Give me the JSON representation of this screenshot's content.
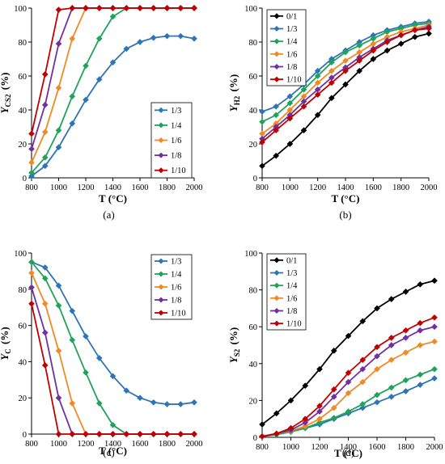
{
  "chart_data": [
    {
      "type": "line",
      "panel": "a",
      "caption": "(a)",
      "xlabel": "T (°C)",
      "ylabel": "Y",
      "ylabel_sub": "CS2",
      "ylabel_unit": "(%)",
      "xlim": [
        800,
        2000
      ],
      "ylim": [
        0,
        100
      ],
      "xticks": [
        800,
        1000,
        1200,
        1400,
        1600,
        1800,
        2000
      ],
      "yticks": [
        0,
        20,
        40,
        60,
        80,
        100
      ],
      "grid": false,
      "legend": "bottom-right",
      "x": [
        800,
        900,
        1000,
        1100,
        1200,
        1300,
        1400,
        1500,
        1600,
        1700,
        1800,
        1900,
        2000
      ],
      "series": [
        {
          "name": "1/3",
          "color": "#2e75b6",
          "values": [
            1,
            7,
            18,
            32,
            46,
            58,
            68,
            76,
            80,
            82.5,
            83.5,
            83.5,
            82
          ]
        },
        {
          "name": "1/4",
          "color": "#1fa35a",
          "values": [
            3,
            12,
            28,
            48,
            66,
            82,
            95,
            100,
            100,
            100,
            100,
            100,
            100
          ]
        },
        {
          "name": "1/6",
          "color": "#f08a24",
          "values": [
            9,
            27,
            53,
            82,
            100,
            100,
            100,
            100,
            100,
            100,
            100,
            100,
            100
          ]
        },
        {
          "name": "1/8",
          "color": "#7030a0",
          "values": [
            17,
            43,
            79,
            100,
            100,
            100,
            100,
            100,
            100,
            100,
            100,
            100,
            100
          ]
        },
        {
          "name": "1/10",
          "color": "#c00000",
          "values": [
            26,
            61,
            99,
            100,
            100,
            100,
            100,
            100,
            100,
            100,
            100,
            100,
            100
          ]
        }
      ]
    },
    {
      "type": "line",
      "panel": "b",
      "caption": "(b)",
      "xlabel": "T (°C)",
      "ylabel": "Y",
      "ylabel_sub": "H2",
      "ylabel_unit": "(%)",
      "xlim": [
        800,
        2000
      ],
      "ylim": [
        0,
        100
      ],
      "xticks": [
        800,
        1000,
        1200,
        1400,
        1600,
        1800,
        2000
      ],
      "yticks": [
        0,
        20,
        40,
        60,
        80,
        100
      ],
      "grid": false,
      "legend": "top-left",
      "x": [
        800,
        900,
        1000,
        1100,
        1200,
        1300,
        1400,
        1500,
        1600,
        1700,
        1800,
        1900,
        2000
      ],
      "series": [
        {
          "name": "0/1",
          "color": "#000000",
          "values": [
            7,
            13,
            20,
            28,
            37,
            47,
            55,
            63,
            70,
            75,
            79,
            83,
            85
          ]
        },
        {
          "name": "1/3",
          "color": "#2e75b6",
          "values": [
            39,
            42,
            48,
            55,
            63,
            70,
            75,
            80,
            84,
            87,
            89,
            91,
            92
          ]
        },
        {
          "name": "1/4",
          "color": "#1fa35a",
          "values": [
            33,
            37,
            44,
            52,
            60,
            68,
            74,
            78,
            82,
            86,
            88,
            90,
            91
          ]
        },
        {
          "name": "1/6",
          "color": "#f08a24",
          "values": [
            26,
            32,
            40,
            48,
            56,
            63,
            69,
            74,
            79,
            83,
            86,
            88,
            90
          ]
        },
        {
          "name": "1/8",
          "color": "#7030a0",
          "values": [
            23,
            30,
            37,
            45,
            52,
            59,
            65,
            71,
            76,
            81,
            84,
            87,
            89
          ]
        },
        {
          "name": "1/10",
          "color": "#c00000",
          "values": [
            21,
            28,
            35,
            42,
            49,
            56,
            63,
            69,
            75,
            80,
            84,
            87,
            88
          ]
        }
      ]
    },
    {
      "type": "line",
      "panel": "c",
      "caption": "(c)",
      "xlabel": "T (°C)",
      "ylabel": "Y",
      "ylabel_sub": "C",
      "ylabel_unit": "(%)",
      "xlim": [
        800,
        2000
      ],
      "ylim": [
        0,
        100
      ],
      "xticks": [
        800,
        1000,
        1200,
        1400,
        1600,
        1800,
        2000
      ],
      "yticks": [
        0,
        20,
        40,
        60,
        80,
        100
      ],
      "grid": false,
      "legend": "top-right",
      "x": [
        800,
        900,
        1000,
        1100,
        1200,
        1300,
        1400,
        1500,
        1600,
        1700,
        1800,
        1900,
        2000
      ],
      "series": [
        {
          "name": "1/3",
          "color": "#2e75b6",
          "values": [
            95,
            92,
            82,
            68,
            54,
            42,
            32,
            24,
            20,
            17.5,
            16.5,
            16.5,
            17.5
          ]
        },
        {
          "name": "1/4",
          "color": "#1fa35a",
          "values": [
            95,
            86,
            71,
            52,
            34,
            17,
            5,
            0,
            0,
            0,
            0,
            0,
            0
          ]
        },
        {
          "name": "1/6",
          "color": "#f08a24",
          "values": [
            89,
            72,
            46,
            17,
            0,
            0,
            0,
            0,
            0,
            0,
            0,
            0,
            0
          ]
        },
        {
          "name": "1/8",
          "color": "#7030a0",
          "values": [
            81,
            56,
            20,
            0,
            0,
            0,
            0,
            0,
            0,
            0,
            0,
            0,
            0
          ]
        },
        {
          "name": "1/10",
          "color": "#c00000",
          "values": [
            72,
            38,
            0,
            0,
            0,
            0,
            0,
            0,
            0,
            0,
            0,
            0,
            0
          ]
        }
      ]
    },
    {
      "type": "line",
      "panel": "d",
      "caption": "(d)",
      "xlabel": "T (°C)",
      "ylabel": "Y",
      "ylabel_sub": "S2",
      "ylabel_unit": "(%)",
      "xlim": [
        800,
        2000
      ],
      "ylim": [
        0,
        100
      ],
      "xticks": [
        800,
        1000,
        1200,
        1400,
        1600,
        1800,
        2000
      ],
      "yticks": [
        0,
        20,
        40,
        60,
        80,
        100
      ],
      "grid": false,
      "legend": "top-left",
      "x": [
        800,
        900,
        1000,
        1100,
        1200,
        1300,
        1400,
        1500,
        1600,
        1700,
        1800,
        1900,
        2000
      ],
      "series": [
        {
          "name": "0/1",
          "color": "#000000",
          "values": [
            7,
            13,
            20,
            28,
            37,
            47,
            55,
            63,
            70,
            75,
            79,
            83,
            85
          ]
        },
        {
          "name": "1/3",
          "color": "#2e75b6",
          "values": [
            0.5,
            1.5,
            3,
            5,
            7,
            10,
            13,
            16,
            19,
            22,
            25,
            28.5,
            32
          ]
        },
        {
          "name": "1/4",
          "color": "#1fa35a",
          "values": [
            0.5,
            1.5,
            3,
            5,
            8,
            10.5,
            14,
            18,
            23,
            27,
            31,
            34,
            37
          ]
        },
        {
          "name": "1/6",
          "color": "#f08a24",
          "values": [
            0.5,
            2,
            3.5,
            6,
            10,
            16,
            24,
            30,
            37,
            42,
            46,
            50,
            52
          ]
        },
        {
          "name": "1/8",
          "color": "#7030a0",
          "values": [
            0.5,
            2,
            4,
            8,
            14,
            22,
            30,
            37,
            44,
            50,
            54,
            58,
            60
          ]
        },
        {
          "name": "1/10",
          "color": "#c00000",
          "values": [
            0.5,
            2,
            5,
            10,
            17,
            26,
            35,
            42,
            49,
            54,
            58,
            62,
            65
          ]
        }
      ]
    }
  ]
}
